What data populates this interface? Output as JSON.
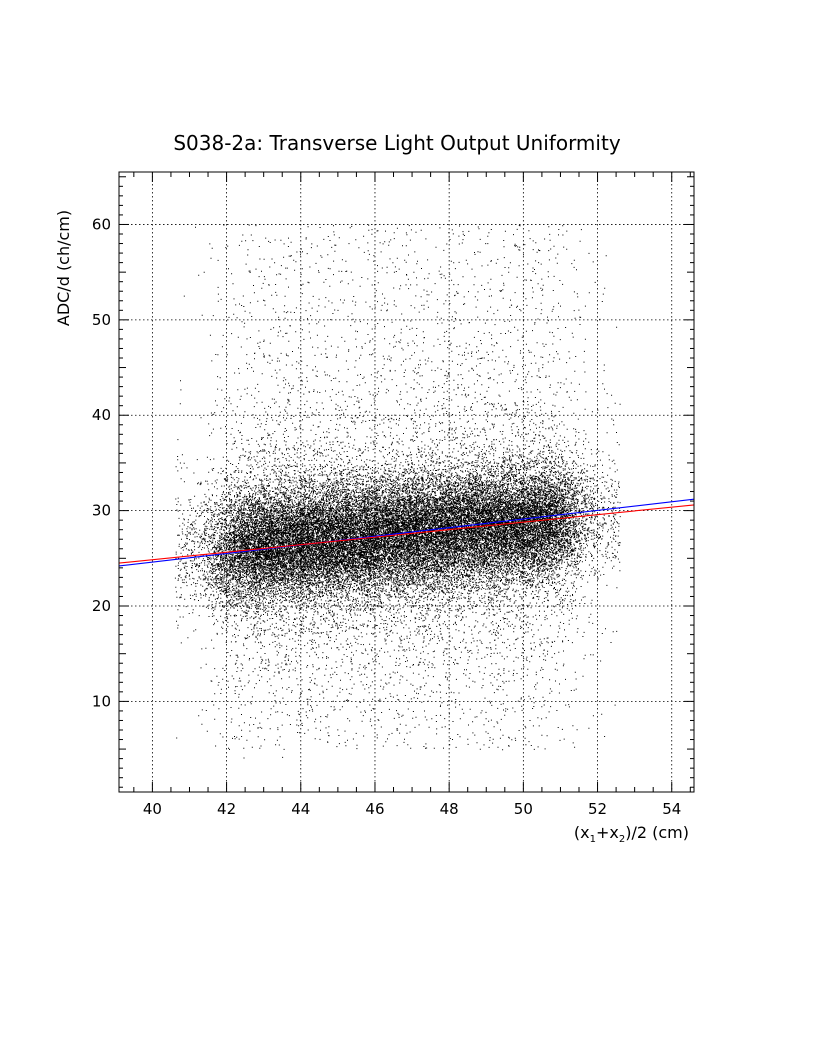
{
  "chart_data": {
    "type": "scatter",
    "title_prefix": "S038-2a",
    "title_main": ": Transverse Light Output Uniformity",
    "ylabel": "ADC/d (ch/cm)",
    "xlabel": {
      "open": "(x",
      "sub1": "1",
      "plus": "+x",
      "sub2": "2",
      "close": ")/2 (cm)"
    },
    "xlim": [
      39.1,
      54.6
    ],
    "ylim": [
      0.5,
      65.5
    ],
    "x_ticks": [
      40,
      42,
      44,
      46,
      48,
      50,
      52,
      54
    ],
    "x_tick_labels": [
      "40",
      "42",
      "44",
      "46",
      "48",
      "50",
      "52",
      "54"
    ],
    "y_ticks": [
      10,
      20,
      30,
      40,
      50,
      60
    ],
    "y_tick_labels": [
      "10",
      "20",
      "30",
      "40",
      "50",
      "60"
    ],
    "grid": true,
    "points_description": {
      "x_range": [
        40.6,
        52.6
      ],
      "y_core_range": [
        22,
        33
      ],
      "approx_points": 40000,
      "dense_band_center_y": 27.5
    },
    "fit_lines": [
      {
        "color": "#0000ff",
        "x": [
          39.1,
          54.6
        ],
        "y": [
          24.2,
          31.2
        ]
      },
      {
        "color": "#ff0000",
        "x": [
          39.1,
          54.6
        ],
        "y": [
          24.5,
          30.6
        ]
      }
    ]
  }
}
